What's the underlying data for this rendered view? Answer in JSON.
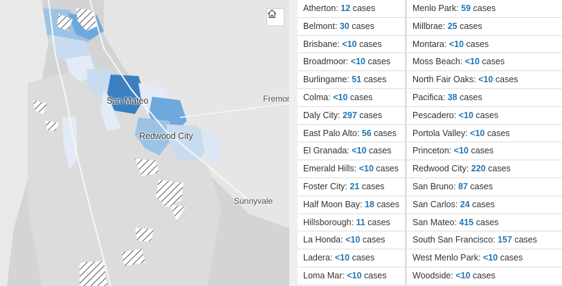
{
  "map": {
    "labels": {
      "san_mateo": "San Mateo",
      "redwood_city": "Redwood City",
      "fremont": "Fremont",
      "sunnyvale": "Sunnyvale"
    },
    "home_icon": "home-icon",
    "colors": {
      "water": "#e9e9e9",
      "land": "#d6d6d6",
      "darkest_fill": "#3a7fc1",
      "dark_fill": "#6fa8dc",
      "medium_fill": "#9cc3e6",
      "light_fill": "#c9dcef",
      "lightest_fill": "#e3ebf7"
    }
  },
  "legend": {
    "suffix": " cases",
    "left": [
      {
        "name": "Atherton: ",
        "count": "12"
      },
      {
        "name": "Belmont: ",
        "count": "30"
      },
      {
        "name": "Brisbane: ",
        "count": "<10"
      },
      {
        "name": "Broadmoor: ",
        "count": "<10"
      },
      {
        "name": "Burlingame: ",
        "count": "51"
      },
      {
        "name": "Colma: ",
        "count": "<10"
      },
      {
        "name": "Daly City: ",
        "count": "297"
      },
      {
        "name": "East Palo Alto: ",
        "count": "56"
      },
      {
        "name": "El Granada: ",
        "count": "<10"
      },
      {
        "name": "Emerald Hills: ",
        "count": "<10"
      },
      {
        "name": "Foster City: ",
        "count": "21"
      },
      {
        "name": "Half Moon Bay: ",
        "count": "18"
      },
      {
        "name": "Hillsborough: ",
        "count": "11"
      },
      {
        "name": "La Honda: ",
        "count": "<10"
      },
      {
        "name": "Ladera: ",
        "count": "<10"
      },
      {
        "name": "Loma Mar: ",
        "count": "<10"
      }
    ],
    "right": [
      {
        "name": "Menlo Park: ",
        "count": "59"
      },
      {
        "name": "Millbrae: ",
        "count": "25"
      },
      {
        "name": "Montara: ",
        "count": "<10"
      },
      {
        "name": "Moss Beach: ",
        "count": "<10"
      },
      {
        "name": "North Fair Oaks: ",
        "count": "<10"
      },
      {
        "name": "Pacifica: ",
        "count": "38"
      },
      {
        "name": "Pescadero: ",
        "count": "<10"
      },
      {
        "name": "Portola Valley: ",
        "count": "<10"
      },
      {
        "name": "Princeton: ",
        "count": "<10"
      },
      {
        "name": "Redwood City: ",
        "count": "220"
      },
      {
        "name": "San Bruno: ",
        "count": "87"
      },
      {
        "name": "San Carlos: ",
        "count": "24"
      },
      {
        "name": "San Mateo: ",
        "count": "415"
      },
      {
        "name": "South San Francisco: ",
        "count": "157"
      },
      {
        "name": "West Menlo Park: ",
        "count": "<10"
      },
      {
        "name": "Woodside: ",
        "count": "<10"
      }
    ]
  }
}
